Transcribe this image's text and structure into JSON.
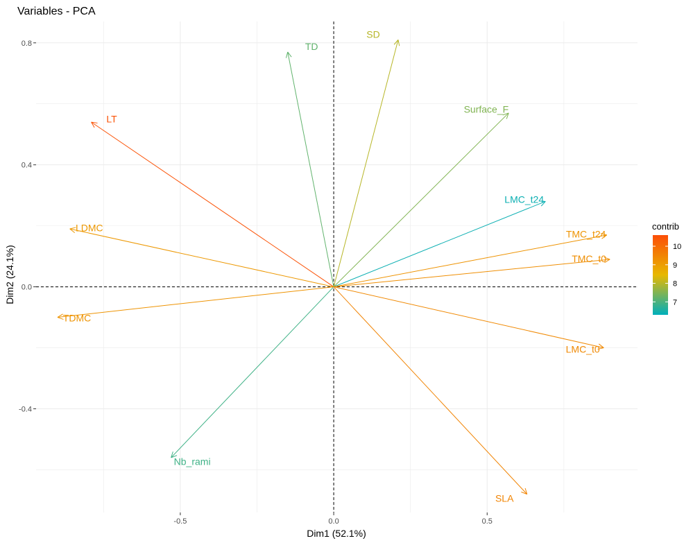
{
  "chart_data": {
    "type": "pca-variable-correlation-circle",
    "title": "Variables - PCA",
    "xlabel": "Dim1 (52.1%)",
    "ylabel": "Dim2 (24.1%)",
    "xlim": [
      -0.97,
      0.99
    ],
    "ylim": [
      -0.74,
      0.87
    ],
    "x_ticks": [
      {
        "value": -0.5,
        "label": "-0.5"
      },
      {
        "value": 0.0,
        "label": "0.0"
      },
      {
        "value": 0.5,
        "label": "0.5"
      }
    ],
    "y_ticks": [
      {
        "value": -0.4,
        "label": "-0.4"
      },
      {
        "value": 0.0,
        "label": "0.0"
      },
      {
        "value": 0.4,
        "label": "0.4"
      },
      {
        "value": 0.8,
        "label": "0.8"
      }
    ],
    "grid": true,
    "reference_lines": "dashed at x=0 and y=0",
    "variables": [
      {
        "name": "LT",
        "x": -0.79,
        "y": 0.54,
        "contrib": 10.5
      },
      {
        "name": "TD",
        "x": -0.15,
        "y": 0.77,
        "contrib": 7.2
      },
      {
        "name": "SD",
        "x": 0.21,
        "y": 0.81,
        "contrib": 8.0
      },
      {
        "name": "Surface_F",
        "x": 0.57,
        "y": 0.57,
        "contrib": 7.5
      },
      {
        "name": "LMC_t24",
        "x": 0.69,
        "y": 0.28,
        "contrib": 6.4
      },
      {
        "name": "TMC_t24",
        "x": 0.89,
        "y": 0.17,
        "contrib": 9.2
      },
      {
        "name": "TMC_t0",
        "x": 0.9,
        "y": 0.09,
        "contrib": 9.3
      },
      {
        "name": "LMC_t0",
        "x": 0.88,
        "y": -0.2,
        "contrib": 9.4
      },
      {
        "name": "SLA",
        "x": 0.63,
        "y": -0.68,
        "contrib": 9.5
      },
      {
        "name": "Nb_rami",
        "x": -0.53,
        "y": -0.56,
        "contrib": 6.9
      },
      {
        "name": "TDMC",
        "x": -0.9,
        "y": -0.1,
        "contrib": 9.2
      },
      {
        "name": "LDMC",
        "x": -0.86,
        "y": 0.19,
        "contrib": 9.1
      }
    ],
    "legend": {
      "title": "contrib",
      "position": "right",
      "ticks": [
        {
          "value": 10,
          "label": "10"
        },
        {
          "value": 9,
          "label": "9"
        },
        {
          "value": 8,
          "label": "8"
        },
        {
          "value": 7,
          "label": "7"
        }
      ],
      "range": [
        6.3,
        10.6
      ],
      "gradient_colors": [
        "#00AFBB",
        "#E7B800",
        "#FC4E07"
      ]
    }
  }
}
